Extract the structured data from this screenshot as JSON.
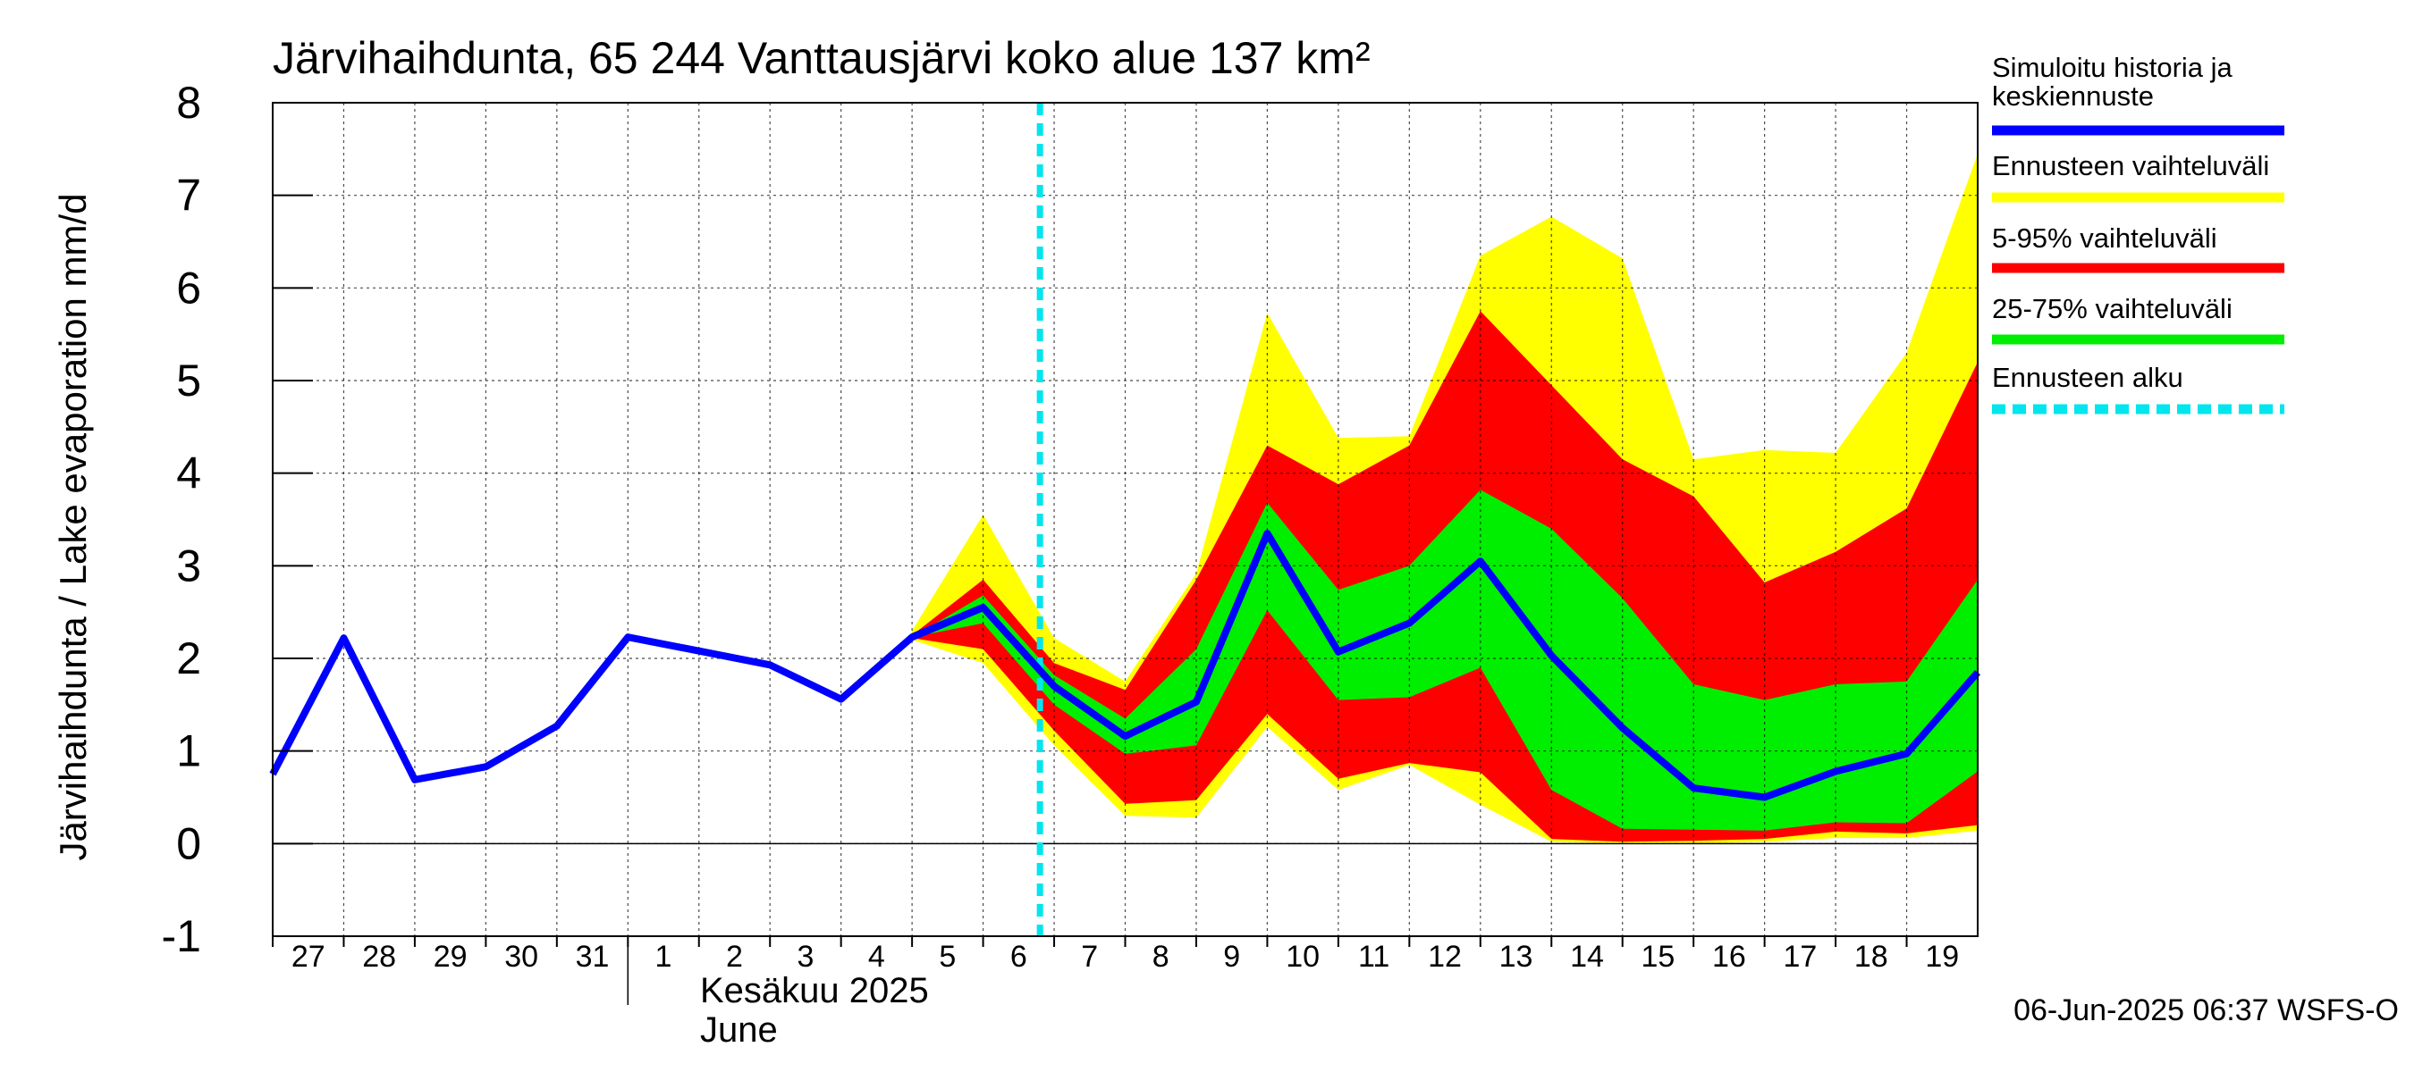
{
  "chart_data": {
    "type": "area",
    "title": "Järvihaihdunta, 65 244 Vanttausjärvi koko alue 137 km²",
    "ylabel": "Järvihaihdunta / Lake evaporation   mm/d",
    "ylim": [
      -1,
      8
    ],
    "yticks": [
      -1,
      0,
      1,
      2,
      3,
      4,
      5,
      6,
      7,
      8
    ],
    "grid": true,
    "legend_position": "right",
    "x_tick_labels": [
      "27",
      "28",
      "29",
      "30",
      "31",
      "1",
      "2",
      "3",
      "4",
      "5",
      "6",
      "7",
      "8",
      "9",
      "10",
      "11",
      "12",
      "13",
      "14",
      "15",
      "16",
      "17",
      "18",
      "19"
    ],
    "month_label_fi": "Kesäkuu  2025",
    "month_label_en": "June",
    "timestamp": "06-Jun-2025 06:37 WSFS-O",
    "forecast_start_x": 10.8,
    "colors": {
      "history": "#0000ff",
      "range_full": "#ffff00",
      "range_5_95": "#ff0000",
      "range_25_75": "#00ee00",
      "forecast_start": "#00e5ee"
    },
    "legend": [
      {
        "label_lines": [
          "Simuloitu historia ja",
          "keskiennuste"
        ],
        "color": "#0000ff",
        "style": "solid"
      },
      {
        "label_lines": [
          "Ennusteen vaihteluväli"
        ],
        "color": "#ffff00",
        "style": "solid"
      },
      {
        "label_lines": [
          "5-95% vaihteluväli"
        ],
        "color": "#ff0000",
        "style": "solid"
      },
      {
        "label_lines": [
          "25-75% vaihteluväli"
        ],
        "color": "#00ee00",
        "style": "solid"
      },
      {
        "label_lines": [
          "Ennusteen alku"
        ],
        "color": "#00e5ee",
        "style": "dashed"
      }
    ],
    "history": {
      "x": [
        0,
        1,
        2,
        3,
        4,
        5,
        6,
        7,
        8,
        9,
        10
      ],
      "y": [
        0.75,
        2.22,
        0.69,
        0.83,
        1.27,
        2.23,
        2.08,
        1.93,
        1.56,
        2.23,
        2.55
      ]
    },
    "forecast_x": [
      9,
      10,
      11,
      12,
      13,
      14,
      15,
      16,
      17,
      18,
      19,
      20,
      21,
      22,
      23,
      24
    ],
    "median": [
      2.23,
      2.55,
      1.7,
      1.16,
      1.53,
      3.35,
      2.07,
      2.38,
      3.05,
      2.03,
      1.25,
      0.6,
      0.5,
      0.78,
      0.97,
      1.85
    ],
    "range_full": {
      "upper": [
        2.3,
        3.55,
        2.22,
        1.75,
        2.92,
        5.73,
        4.38,
        4.4,
        6.35,
        6.77,
        6.32,
        4.15,
        4.25,
        4.22,
        5.3,
        7.45
      ],
      "lower": [
        2.2,
        1.95,
        1.06,
        0.3,
        0.28,
        1.26,
        0.58,
        0.85,
        0.42,
        0.02,
        0.0,
        0.0,
        0.02,
        0.06,
        0.06,
        0.14
      ]
    },
    "range_5_95": {
      "upper": [
        2.25,
        2.85,
        1.95,
        1.66,
        2.85,
        4.3,
        3.88,
        4.3,
        5.75,
        4.95,
        4.15,
        3.75,
        2.82,
        3.15,
        3.62,
        5.2
      ]
    },
    "range_25_75": {
      "upper": [
        2.23,
        2.68,
        1.82,
        1.35,
        2.1,
        3.68,
        2.74,
        3.0,
        3.82,
        3.4,
        2.65,
        1.72,
        1.55,
        1.72,
        1.75,
        2.85
      ],
      "lower": [
        2.23,
        2.38,
        1.5,
        0.97,
        1.06,
        2.52,
        1.55,
        1.58,
        1.9,
        0.58,
        0.16,
        0.15,
        0.14,
        0.23,
        0.22,
        0.78
      ]
    },
    "range_5_95_lower": [
      2.22,
      2.1,
      1.22,
      0.43,
      0.47,
      1.4,
      0.7,
      0.87,
      0.77,
      0.05,
      0.02,
      0.03,
      0.05,
      0.13,
      0.11,
      0.2
    ]
  }
}
